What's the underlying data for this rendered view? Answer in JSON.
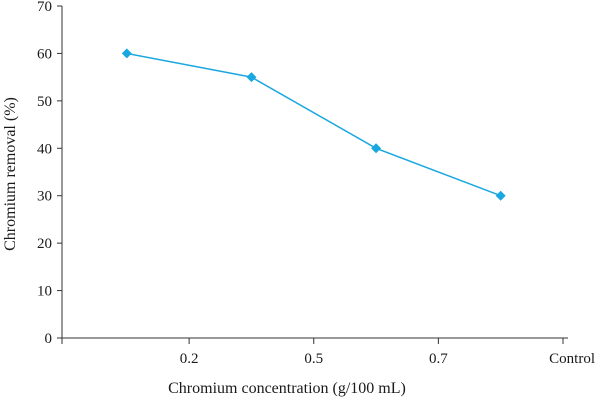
{
  "chart_data": {
    "type": "line",
    "title": "",
    "xlabel": "Chromium concentration (g/100 mL)",
    "ylabel": "Chromium removal (%)",
    "categories": [
      "0.2",
      "0.5",
      "0.7",
      "Control"
    ],
    "series": [
      {
        "values": [
          60,
          55,
          40,
          30
        ],
        "color": "#1aa7e0",
        "marker": "diamond"
      }
    ],
    "ylim": [
      0,
      70
    ],
    "yticks": [
      0,
      10,
      20,
      30,
      40,
      50,
      60,
      70
    ],
    "grid": false,
    "legend": "none"
  }
}
